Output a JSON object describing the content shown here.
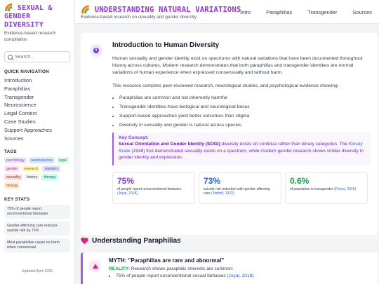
{
  "sidebar": {
    "brand_title": "🌈 SEXUAL & GENDER DIVERSITY",
    "brand_subtitle": "Evidence-based research compilation",
    "search_placeholder": "Search...",
    "quick_nav_heading": "QUICK NAVIGATION",
    "nav_items": [
      "Introduction",
      "Paraphilias",
      "Transgender",
      "Neuroscience",
      "Legal Context",
      "Case Studies",
      "Support Approaches",
      "Sources"
    ],
    "tags_heading": "TAGS",
    "tags": [
      {
        "label": "psychology",
        "bg": "#f3e8ff",
        "fg": "#7c3aed"
      },
      {
        "label": "neuroscience",
        "bg": "#dbeafe",
        "fg": "#2563eb"
      },
      {
        "label": "legal",
        "bg": "#dcfce7",
        "fg": "#15803d"
      },
      {
        "label": "gender",
        "bg": "#fce7f3",
        "fg": "#be185d"
      },
      {
        "label": "research",
        "bg": "#fef9c3",
        "fg": "#a16207"
      },
      {
        "label": "statistics",
        "bg": "#e0e7ff",
        "fg": "#4338ca"
      },
      {
        "label": "sexuality",
        "bg": "#fee2e2",
        "fg": "#b91c1c"
      },
      {
        "label": "history",
        "bg": "#f3f4f6",
        "fg": "#374151"
      },
      {
        "label": "therapy",
        "bg": "#ccfbf1",
        "fg": "#0f766e"
      },
      {
        "label": "biology",
        "bg": "#ffedd5",
        "fg": "#c2410c"
      }
    ],
    "key_stats_heading": "KEY STATS",
    "key_stats": [
      "75% of people report unconventional fantasies",
      "Gender-affirming care reduces suicide risk by 73%",
      "Most paraphilias cause no harm when consensual"
    ],
    "updated": "Updated April 2025"
  },
  "header": {
    "title": "🌈 UNDERSTANDING NATURAL VARIATIONS",
    "subtitle": "Evidence-based research on sexuality and gender diversity",
    "nav": [
      "Intro",
      "Paraphilias",
      "Transgender",
      "Sources"
    ]
  },
  "intro": {
    "title": "Introduction to Human Diversity",
    "p1": "Human sexuality and gender identity exist on spectrums with natural variations that have been documented throughout history across cultures. Modern research demonstrates that both paraphilias and transgender identities are normal variations of human experience when expressed consensually and without harm.",
    "p2": "This resource compiles peer-reviewed research, neurological studies, and psychological evidence showing:",
    "bullets": [
      "Paraphilias are common and not inherently harmful",
      "Transgender identities have biological and neurological bases",
      "Support-based approaches yield better outcomes than stigma",
      "Diversity in sexuality and gender is natural across species"
    ],
    "concept": {
      "label": "Key Concept:",
      "bold": "Sexual Orientation and Gender Identity (SOGI)",
      "text1": " diversity exists on continua rather than binary categories. The ",
      "link": "Kinsey Scale",
      "text2": " (1948) first demonstrated sexuality exists on a spectrum, while modern gender research shows similar diversity in gender identity and expression."
    },
    "stats": [
      {
        "num": "75%",
        "color": "#9333ea",
        "desc": "of people report unconventional fantasies ",
        "cite": "(Joyal, 2018)"
      },
      {
        "num": "73%",
        "color": "#2563eb",
        "desc": "suicide risk reduction with gender-affirming care ",
        "cite": "(Tordoff, 2022)"
      },
      {
        "num": "0.6%",
        "color": "#16a34a",
        "desc": "of population is transgender ",
        "cite": "(Flores, 2016)"
      }
    ]
  },
  "paraphilias": {
    "title": "Understanding Paraphilias",
    "myth_title": "MYTH: \"Paraphilias are rare and abnormal\"",
    "reality_label": "REALITY:",
    "reality_text": " Research shows paraphilic interests are common:",
    "bullet_text": "75% of people report unconventional sexual fantasies ",
    "bullet_cite": "(Joyal, 2018)"
  }
}
